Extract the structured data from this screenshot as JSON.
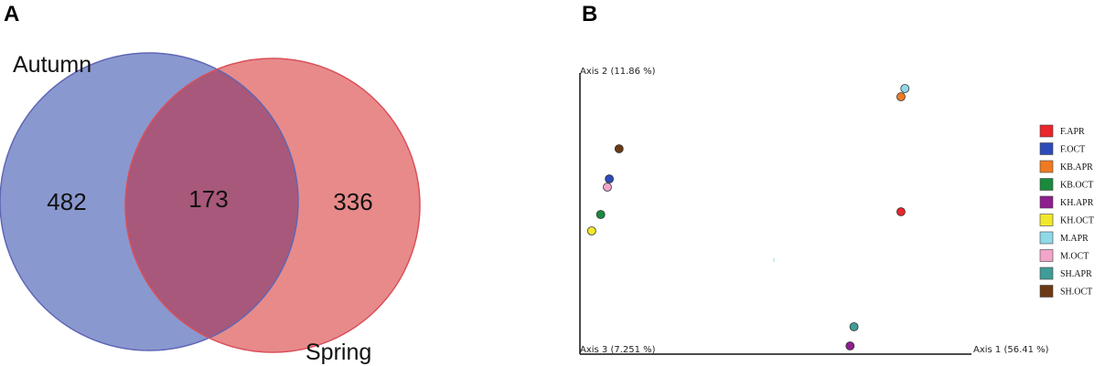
{
  "panels": {
    "a_label": "A",
    "b_label": "B"
  },
  "chart_data": [
    {
      "type": "venn",
      "sets": [
        {
          "name": "Autumn",
          "color": "#8a98d0",
          "stroke": "#5f66b4",
          "unique": 482
        },
        {
          "name": "Spring",
          "color": "#e88a8a",
          "stroke": "#d9505a",
          "unique": 336
        }
      ],
      "intersection": 173,
      "intersection_color": "#a8587a"
    },
    {
      "type": "scatter",
      "axes": {
        "x_label": "Axis 1 (56.41 %)",
        "y_label": "Axis 2 (11.86 %)",
        "z_label": "Axis 3 (7.251 %)"
      },
      "series": [
        {
          "name": "F.APR",
          "color": "#e8262b",
          "x": 0.82,
          "y": 0.52
        },
        {
          "name": "F.OCT",
          "color": "#2b4bb8",
          "x": 0.075,
          "y": 0.64
        },
        {
          "name": "KB.APR",
          "color": "#f07a22",
          "x": 0.82,
          "y": 0.94
        },
        {
          "name": "KB.OCT",
          "color": "#1b8a3c",
          "x": 0.053,
          "y": 0.51
        },
        {
          "name": "KH.APR",
          "color": "#8e1f8e",
          "x": 0.69,
          "y": 0.03
        },
        {
          "name": "KH.OCT",
          "color": "#f2e82a",
          "x": 0.03,
          "y": 0.45
        },
        {
          "name": "M.APR",
          "color": "#8fd8e8",
          "x": 0.83,
          "y": 0.97
        },
        {
          "name": "M.OCT",
          "color": "#f2a5c8",
          "x": 0.07,
          "y": 0.61
        },
        {
          "name": "SH.APR",
          "color": "#3f9c96",
          "x": 0.7,
          "y": 0.1
        },
        {
          "name": "SH.OCT",
          "color": "#6b3a15",
          "x": 0.1,
          "y": 0.75
        }
      ]
    }
  ]
}
